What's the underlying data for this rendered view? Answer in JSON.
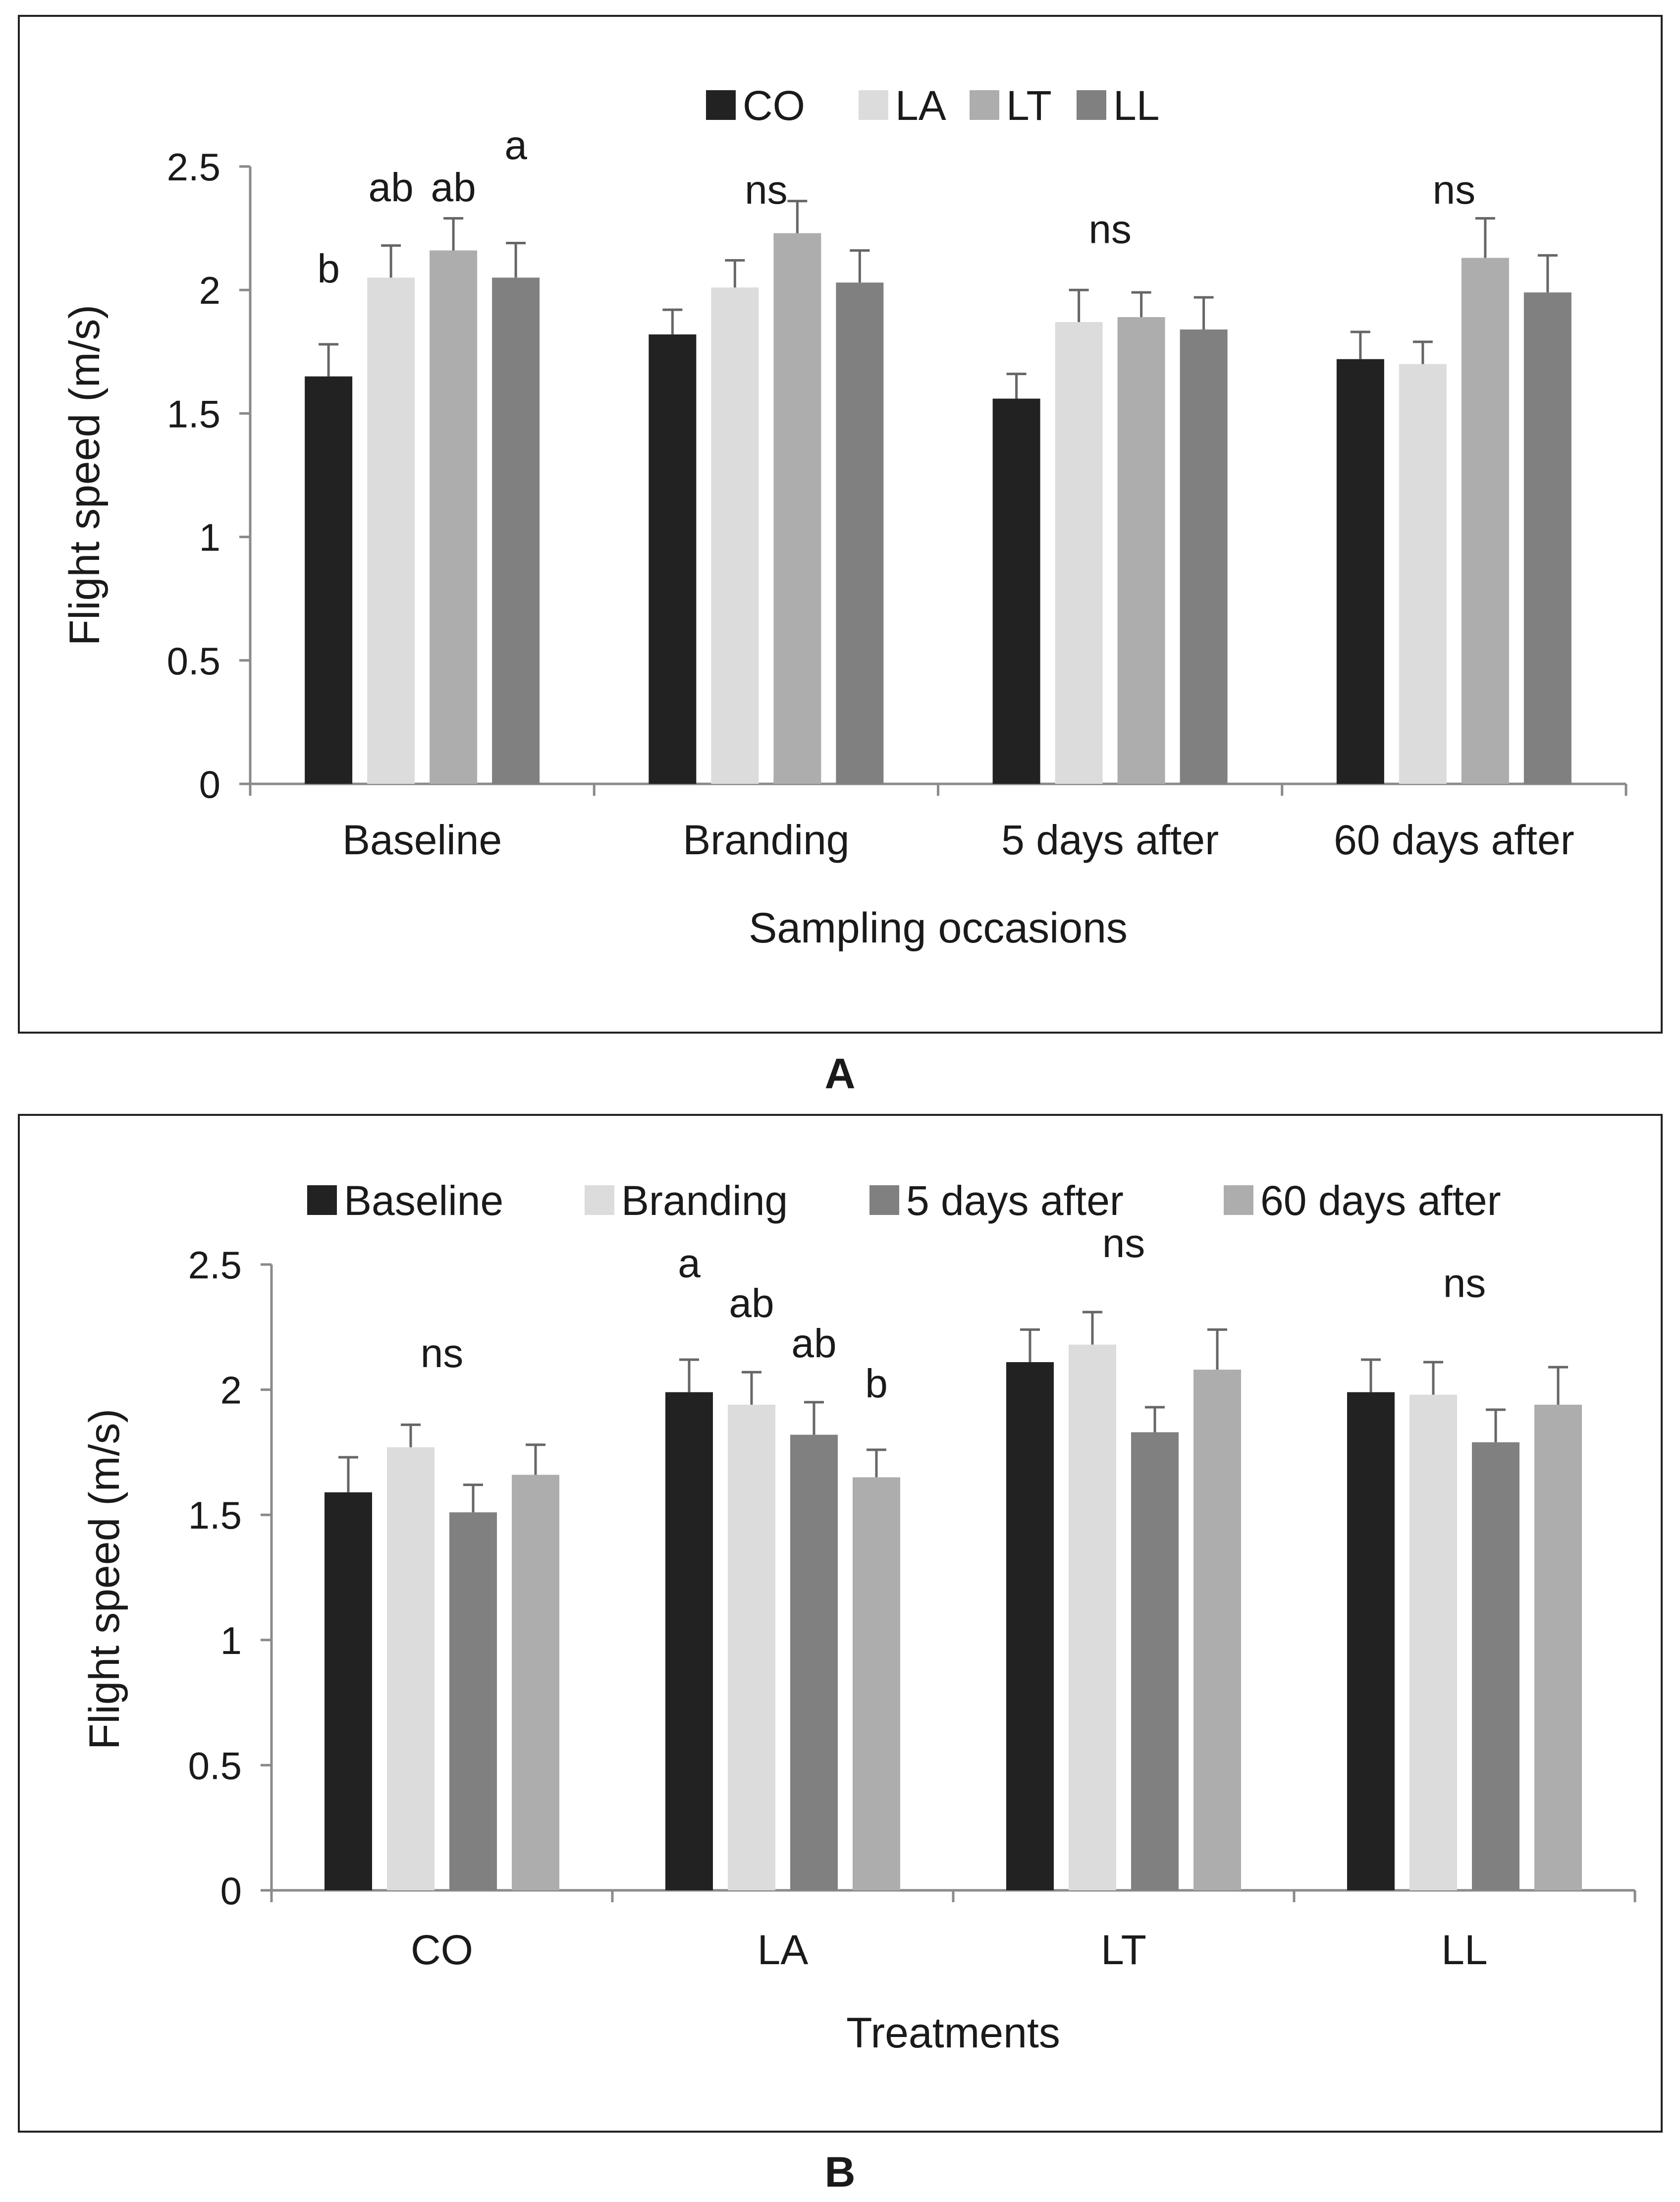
{
  "chart_data": [
    {
      "type": "bar",
      "panel_label": "A",
      "xlabel": "Sampling occasions",
      "ylabel": "Flight speed (m/s)",
      "ylim": [
        0,
        2.5
      ],
      "yticks": [
        "0",
        "0.5",
        "1",
        "1.5",
        "2",
        "2.5"
      ],
      "categories": [
        "Baseline",
        "Branding",
        "5 days after",
        "60 days after"
      ],
      "series": [
        {
          "name": "CO",
          "color": "#222222",
          "values": [
            1.65,
            1.82,
            1.56,
            1.72
          ],
          "errors": [
            0.13,
            0.1,
            0.1,
            0.11
          ]
        },
        {
          "name": "LA",
          "color": "#dcdcdc",
          "values": [
            2.05,
            2.01,
            1.87,
            1.7
          ],
          "errors": [
            0.13,
            0.11,
            0.13,
            0.09
          ]
        },
        {
          "name": "LT",
          "color": "#adadad",
          "values": [
            2.16,
            2.23,
            1.89,
            2.13
          ],
          "errors": [
            0.13,
            0.13,
            0.1,
            0.16
          ]
        },
        {
          "name": "LL",
          "color": "#808080",
          "values": [
            2.05,
            2.03,
            1.84,
            1.99
          ],
          "errors": [
            0.14,
            0.13,
            0.13,
            0.15
          ]
        }
      ],
      "annotations": [
        {
          "category": "Baseline",
          "series": "CO",
          "text": "b",
          "at_value": 2.03
        },
        {
          "category": "Baseline",
          "series": "LA",
          "text": "ab",
          "at_value": 2.36
        },
        {
          "category": "Baseline",
          "series": "LT",
          "text": "ab",
          "at_value": 2.36
        },
        {
          "category": "Baseline",
          "series": "LL",
          "text": "a",
          "at_value": 2.53
        },
        {
          "category": "Branding",
          "series": null,
          "text": "ns",
          "at_value": 2.35
        },
        {
          "category": "5 days after",
          "series": null,
          "text": "ns",
          "at_value": 2.19
        },
        {
          "category": "60 days after",
          "series": null,
          "text": "ns",
          "at_value": 2.35
        }
      ]
    },
    {
      "type": "bar",
      "panel_label": "B",
      "xlabel": "Treatments",
      "ylabel": "Flight speed (m/s)",
      "ylim": [
        0,
        2.5
      ],
      "yticks": [
        "0",
        "0.5",
        "1",
        "1.5",
        "2",
        "2.5"
      ],
      "categories": [
        "CO",
        "LA",
        "LT",
        "LL"
      ],
      "series": [
        {
          "name": "Baseline",
          "color": "#222222",
          "values": [
            1.59,
            1.99,
            2.11,
            1.99
          ],
          "errors": [
            0.14,
            0.13,
            0.13,
            0.13
          ]
        },
        {
          "name": "Branding",
          "color": "#dcdcdc",
          "values": [
            1.77,
            1.94,
            2.18,
            1.98
          ],
          "errors": [
            0.09,
            0.13,
            0.13,
            0.13
          ]
        },
        {
          "name": "5 days after",
          "color": "#808080",
          "values": [
            1.51,
            1.82,
            1.83,
            1.79
          ],
          "errors": [
            0.11,
            0.13,
            0.1,
            0.13
          ]
        },
        {
          "name": "60 days after",
          "color": "#adadad",
          "values": [
            1.66,
            1.65,
            2.08,
            1.94
          ],
          "errors": [
            0.12,
            0.11,
            0.16,
            0.15
          ]
        }
      ],
      "annotations": [
        {
          "category": "CO",
          "series": null,
          "text": "ns",
          "at_value": 2.09
        },
        {
          "category": "LA",
          "series": "Baseline",
          "text": "a",
          "at_value": 2.45
        },
        {
          "category": "LA",
          "series": "Branding",
          "text": "ab",
          "at_value": 2.29
        },
        {
          "category": "LA",
          "series": "5 days after",
          "text": "ab",
          "at_value": 2.13
        },
        {
          "category": "LA",
          "series": "60 days after",
          "text": "b",
          "at_value": 1.97
        },
        {
          "category": "LT",
          "series": null,
          "text": "ns",
          "at_value": 2.53
        },
        {
          "category": "LL",
          "series": null,
          "text": "ns",
          "at_value": 2.37
        }
      ]
    }
  ]
}
